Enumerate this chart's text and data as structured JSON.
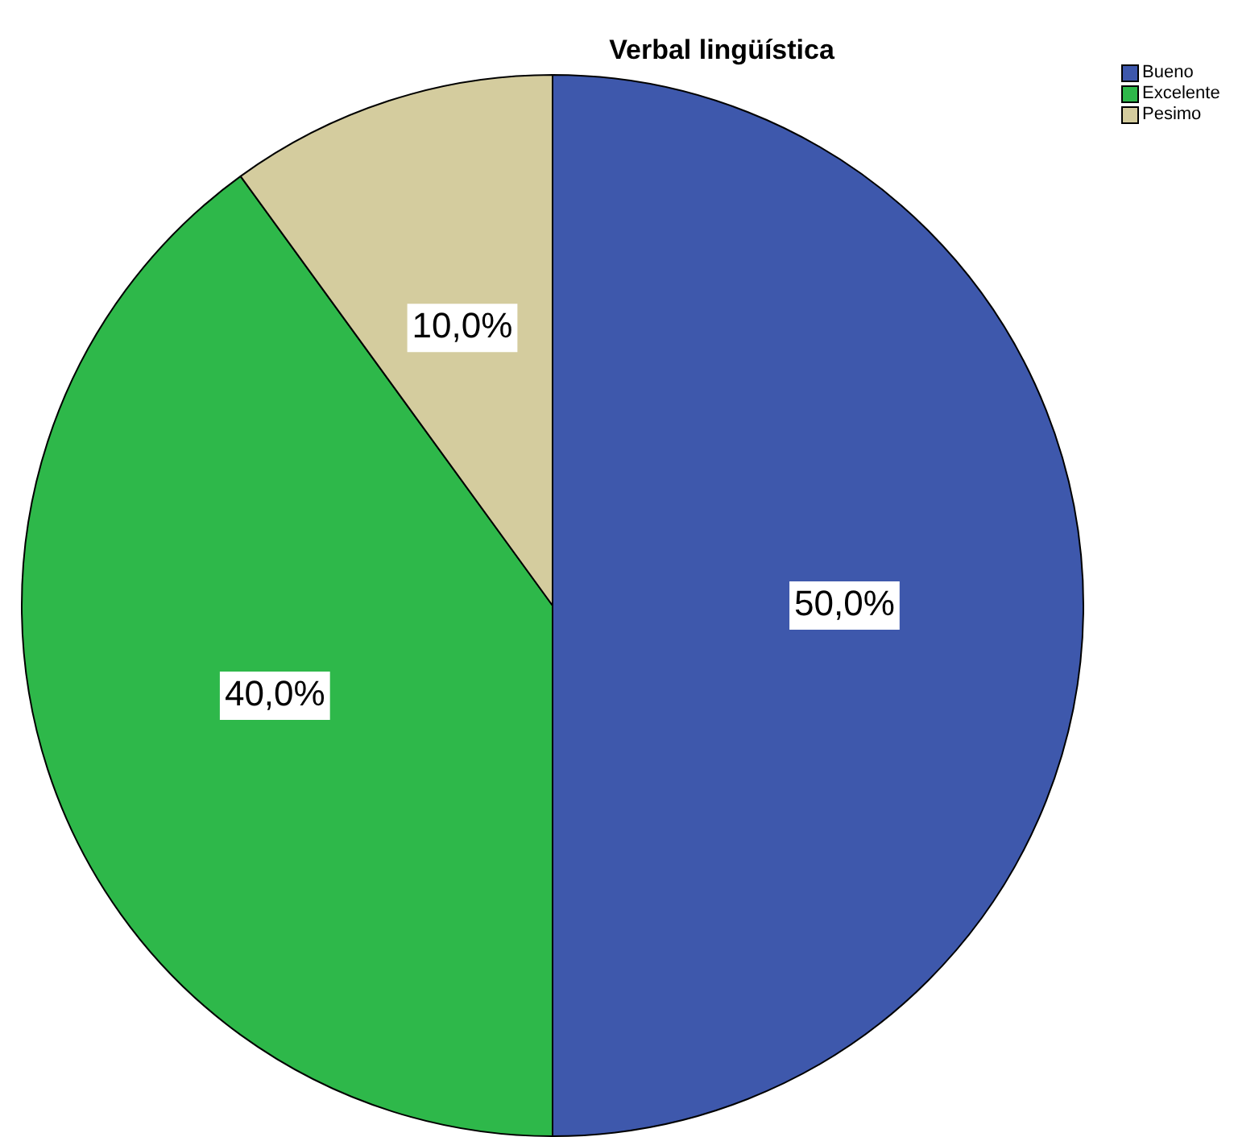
{
  "chart_data": {
    "type": "pie",
    "title": "Verbal lingüística",
    "categories": [
      "Bueno",
      "Excelente",
      "Pesimo"
    ],
    "values": [
      50,
      40,
      10
    ],
    "colors": [
      "#3e58ac",
      "#2eb84a",
      "#d4cc9e"
    ],
    "value_labels": [
      "50,0%",
      "40,0%",
      "10,0%"
    ],
    "legend": "top right"
  }
}
